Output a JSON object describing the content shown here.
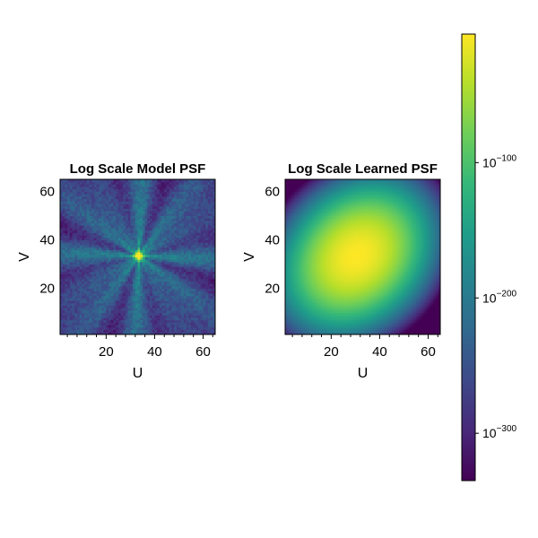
{
  "colors": {
    "viridis": [
      "#440154",
      "#482878",
      "#3e4989",
      "#31688e",
      "#26828e",
      "#1f9e89",
      "#35b779",
      "#6ece58",
      "#b5de2b",
      "#fde725"
    ],
    "frame": "#000000"
  },
  "chart_data": [
    {
      "type": "heatmap",
      "title": "Log Scale Model PSF",
      "xlabel": "U",
      "ylabel": "V",
      "xlim": [
        1,
        65
      ],
      "ylim": [
        1,
        65
      ],
      "xticks": [
        20,
        40,
        60
      ],
      "yticks": [
        20,
        40,
        60
      ],
      "grid_size": 64,
      "peak": [
        33,
        33
      ],
      "pattern": "bright central core with radial spoke artifacts"
    },
    {
      "type": "heatmap",
      "title": "Log Scale Learned PSF",
      "xlabel": "U",
      "ylabel": "V",
      "xlim": [
        1,
        65
      ],
      "ylim": [
        1,
        65
      ],
      "xticks": [
        20,
        40,
        60
      ],
      "yticks": [
        20,
        40,
        60
      ],
      "grid_size": 64,
      "peak": [
        30,
        33
      ],
      "pattern": "smooth broad elliptical distribution, dark corners top-left and bottom-right"
    }
  ],
  "colorbar": {
    "scale": "log",
    "orientation": "vertical",
    "position": "right",
    "exponent_range": [
      -335,
      -5
    ],
    "ticks": [
      {
        "exponent": -100,
        "label": "10",
        "sup": "−100"
      },
      {
        "exponent": -200,
        "label": "10",
        "sup": "−200"
      },
      {
        "exponent": -300,
        "label": "10",
        "sup": "−300"
      }
    ]
  }
}
